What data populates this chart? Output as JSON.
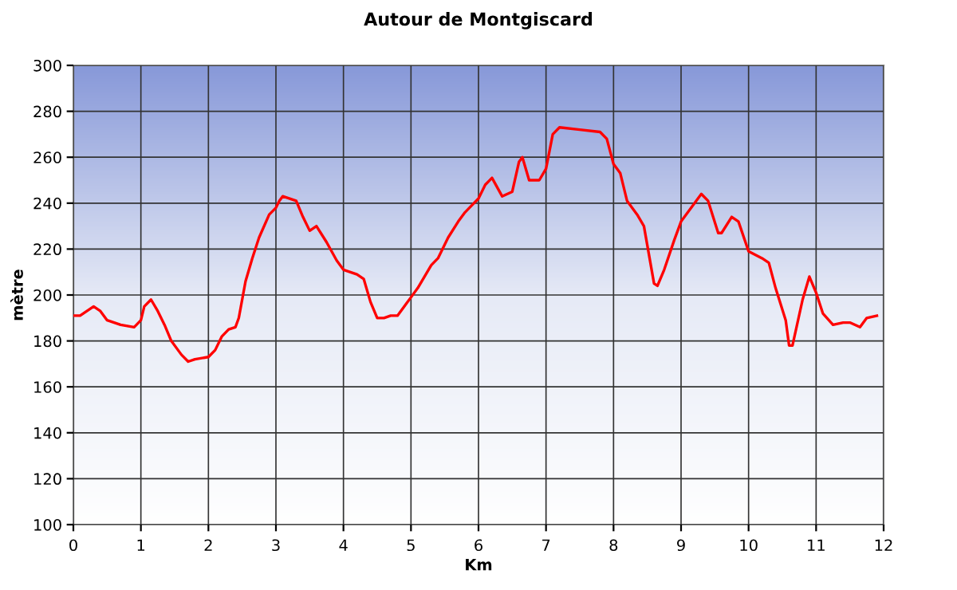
{
  "chart_data": {
    "type": "line",
    "title": "Autour de Montgiscard",
    "xlabel": "Km",
    "ylabel": "mètre",
    "xlim": [
      0,
      12
    ],
    "xticks": [
      0,
      1,
      2,
      3,
      4,
      5,
      6,
      7,
      8,
      9,
      10,
      11,
      12
    ],
    "ylim": [
      100,
      300
    ],
    "yticks": [
      100,
      120,
      140,
      160,
      180,
      200,
      220,
      240,
      260,
      280,
      300
    ],
    "grid": true,
    "marker": "none",
    "line_style": "solid",
    "series": [
      {
        "color": "#ff0000",
        "x": [
          0,
          0.1,
          0.2,
          0.3,
          0.4,
          0.5,
          0.7,
          0.9,
          1.0,
          1.05,
          1.15,
          1.25,
          1.35,
          1.45,
          1.6,
          1.7,
          1.8,
          2.0,
          2.1,
          2.2,
          2.3,
          2.4,
          2.45,
          2.55,
          2.65,
          2.75,
          2.9,
          3.0,
          3.05,
          3.1,
          3.3,
          3.4,
          3.5,
          3.6,
          3.75,
          3.9,
          4.0,
          4.2,
          4.3,
          4.4,
          4.5,
          4.6,
          4.7,
          4.8,
          5.0,
          5.1,
          5.3,
          5.4,
          5.55,
          5.7,
          5.8,
          5.9,
          6.0,
          6.1,
          6.2,
          6.35,
          6.5,
          6.6,
          6.65,
          6.75,
          6.9,
          7.0,
          7.1,
          7.2,
          7.5,
          7.8,
          7.9,
          8.0,
          8.1,
          8.2,
          8.35,
          8.45,
          8.6,
          8.65,
          8.75,
          8.9,
          9.0,
          9.2,
          9.3,
          9.4,
          9.55,
          9.6,
          9.75,
          9.85,
          10.0,
          10.2,
          10.3,
          10.4,
          10.55,
          10.6,
          10.65,
          10.8,
          10.9,
          11.0,
          11.1,
          11.25,
          11.4,
          11.5,
          11.65,
          11.75,
          11.9
        ],
        "values": [
          191,
          191,
          193,
          195,
          193,
          189,
          187,
          186,
          189,
          195,
          198,
          193,
          187,
          180,
          174,
          171,
          172,
          173,
          176,
          182,
          185,
          186,
          190,
          206,
          216,
          225,
          235,
          238,
          241,
          243,
          241,
          234,
          228,
          230,
          223,
          215,
          211,
          209,
          207,
          197,
          190,
          190,
          191,
          191,
          199,
          203,
          213,
          216,
          225,
          232,
          236,
          239,
          242,
          248,
          251,
          243,
          245,
          258,
          260,
          250,
          250,
          255,
          270,
          273,
          272,
          271,
          268,
          257,
          253,
          241,
          235,
          230,
          205,
          204,
          211,
          224,
          232,
          240,
          244,
          241,
          227,
          227,
          234,
          232,
          219,
          216,
          214,
          203,
          189,
          178,
          178,
          198,
          208,
          201,
          192,
          187,
          188,
          188,
          186,
          190,
          191
        ]
      }
    ]
  }
}
